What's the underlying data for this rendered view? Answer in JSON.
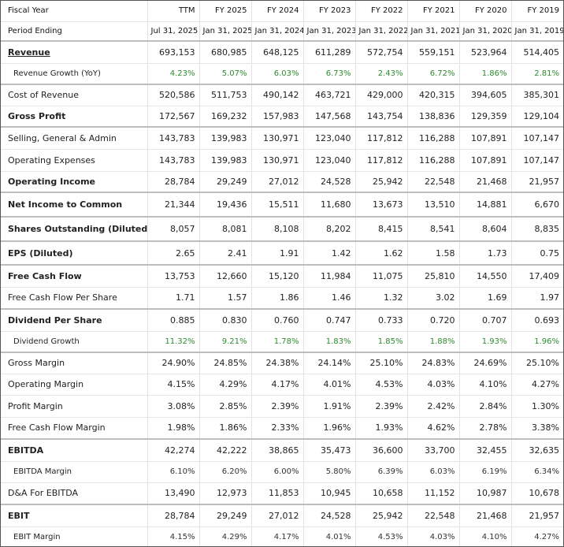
{
  "header": {
    "label": "Fiscal Year",
    "columns": [
      "TTM",
      "FY 2025",
      "FY 2024",
      "FY 2023",
      "FY 2022",
      "FY 2021",
      "FY 2020",
      "FY 2019"
    ]
  },
  "period": {
    "label": "Period Ending",
    "dates": [
      "Jul 31, 2025",
      "Jan 31, 2025",
      "Jan 31, 2024",
      "Jan 31, 2023",
      "Jan 31, 2022",
      "Jan 31, 2021",
      "Jan 31, 2020",
      "Jan 31, 2019"
    ]
  },
  "rows": [
    {
      "label": "Revenue",
      "values": [
        "693,153",
        "680,985",
        "648,125",
        "611,289",
        "572,754",
        "559,151",
        "523,964",
        "514,405"
      ]
    },
    {
      "label": "Revenue Growth (YoY)",
      "values": [
        "4.23%",
        "5.07%",
        "6.03%",
        "6.73%",
        "2.43%",
        "6.72%",
        "1.86%",
        "2.81%"
      ]
    },
    {
      "label": "Cost of Revenue",
      "values": [
        "520,586",
        "511,753",
        "490,142",
        "463,721",
        "429,000",
        "420,315",
        "394,605",
        "385,301"
      ]
    },
    {
      "label": "Gross Profit",
      "values": [
        "172,567",
        "169,232",
        "157,983",
        "147,568",
        "143,754",
        "138,836",
        "129,359",
        "129,104"
      ]
    },
    {
      "label": "Selling, General & Admin",
      "values": [
        "143,783",
        "139,983",
        "130,971",
        "123,040",
        "117,812",
        "116,288",
        "107,891",
        "107,147"
      ]
    },
    {
      "label": "Operating Expenses",
      "values": [
        "143,783",
        "139,983",
        "130,971",
        "123,040",
        "117,812",
        "116,288",
        "107,891",
        "107,147"
      ]
    },
    {
      "label": "Operating Income",
      "values": [
        "28,784",
        "29,249",
        "27,012",
        "24,528",
        "25,942",
        "22,548",
        "21,468",
        "21,957"
      ]
    },
    {
      "label": "Net Income to Common",
      "values": [
        "21,344",
        "19,436",
        "15,511",
        "11,680",
        "13,673",
        "13,510",
        "14,881",
        "6,670"
      ]
    },
    {
      "label": "Shares Outstanding (Diluted)",
      "values": [
        "8,057",
        "8,081",
        "8,108",
        "8,202",
        "8,415",
        "8,541",
        "8,604",
        "8,835"
      ]
    },
    {
      "label": "EPS (Diluted)",
      "values": [
        "2.65",
        "2.41",
        "1.91",
        "1.42",
        "1.62",
        "1.58",
        "1.73",
        "0.75"
      ]
    },
    {
      "label": "Free Cash Flow",
      "values": [
        "13,753",
        "12,660",
        "15,120",
        "11,984",
        "11,075",
        "25,810",
        "14,550",
        "17,409"
      ]
    },
    {
      "label": "Free Cash Flow Per Share",
      "values": [
        "1.71",
        "1.57",
        "1.86",
        "1.46",
        "1.32",
        "3.02",
        "1.69",
        "1.97"
      ]
    },
    {
      "label": "Dividend Per Share",
      "values": [
        "0.885",
        "0.830",
        "0.760",
        "0.747",
        "0.733",
        "0.720",
        "0.707",
        "0.693"
      ]
    },
    {
      "label": "Dividend Growth",
      "values": [
        "11.32%",
        "9.21%",
        "1.78%",
        "1.83%",
        "1.85%",
        "1.88%",
        "1.93%",
        "1.96%"
      ]
    },
    {
      "label": "Gross Margin",
      "values": [
        "24.90%",
        "24.85%",
        "24.38%",
        "24.14%",
        "25.10%",
        "24.83%",
        "24.69%",
        "25.10%"
      ]
    },
    {
      "label": "Operating Margin",
      "values": [
        "4.15%",
        "4.29%",
        "4.17%",
        "4.01%",
        "4.53%",
        "4.03%",
        "4.10%",
        "4.27%"
      ]
    },
    {
      "label": "Profit Margin",
      "values": [
        "3.08%",
        "2.85%",
        "2.39%",
        "1.91%",
        "2.39%",
        "2.42%",
        "2.84%",
        "1.30%"
      ]
    },
    {
      "label": "Free Cash Flow Margin",
      "values": [
        "1.98%",
        "1.86%",
        "2.33%",
        "1.96%",
        "1.93%",
        "4.62%",
        "2.78%",
        "3.38%"
      ]
    },
    {
      "label": "EBITDA",
      "values": [
        "42,274",
        "42,222",
        "38,865",
        "35,473",
        "36,600",
        "33,700",
        "32,455",
        "32,635"
      ]
    },
    {
      "label": "EBITDA Margin",
      "values": [
        "6.10%",
        "6.20%",
        "6.00%",
        "5.80%",
        "6.39%",
        "6.03%",
        "6.19%",
        "6.34%"
      ]
    },
    {
      "label": "D&A For EBITDA",
      "values": [
        "13,490",
        "12,973",
        "11,853",
        "10,945",
        "10,658",
        "11,152",
        "10,987",
        "10,678"
      ]
    },
    {
      "label": "EBIT",
      "values": [
        "28,784",
        "29,249",
        "27,012",
        "24,528",
        "25,942",
        "22,548",
        "21,468",
        "21,957"
      ]
    },
    {
      "label": "EBIT Margin",
      "values": [
        "4.15%",
        "4.29%",
        "4.17%",
        "4.01%",
        "4.53%",
        "4.03%",
        "4.10%",
        "4.27%"
      ]
    }
  ],
  "colors": {
    "growth_text": "#2e8b2e",
    "separator": "#bdbdbd",
    "grid": "#e2e2e2"
  }
}
